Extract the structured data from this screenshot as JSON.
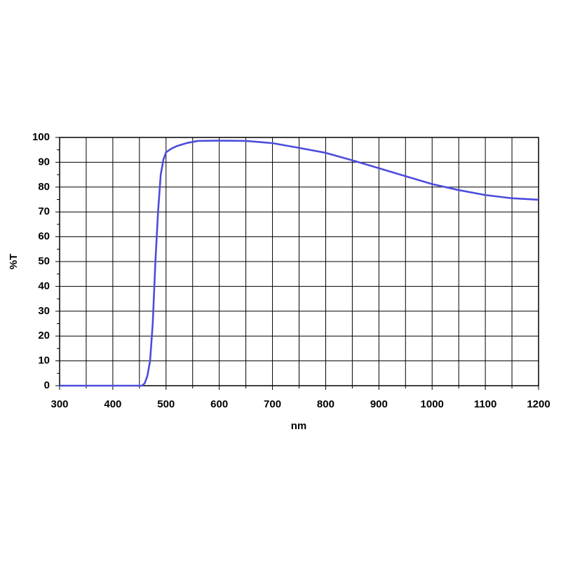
{
  "chart_data": {
    "type": "line",
    "x_label": "nm",
    "y_label": "%T",
    "x": [
      300,
      350,
      400,
      450,
      455,
      460,
      465,
      470,
      475,
      480,
      485,
      490,
      495,
      500,
      510,
      520,
      540,
      560,
      600,
      650,
      700,
      750,
      800,
      850,
      900,
      950,
      1000,
      1050,
      1100,
      1150,
      1200
    ],
    "series": [
      {
        "name": "%T",
        "color": "#4c4cdc",
        "values": [
          0,
          0,
          0,
          0,
          0,
          1,
          4,
          10,
          25,
          50,
          70,
          85,
          91,
          94,
          95.5,
          96.5,
          97.8,
          98.6,
          98.7,
          98.6,
          97.7,
          95.8,
          93.8,
          90.8,
          87.6,
          84.4,
          81.2,
          78.8,
          76.8,
          75.5,
          74.9
        ]
      }
    ],
    "xlim": [
      300,
      1200
    ],
    "xticks": [
      300,
      400,
      500,
      600,
      700,
      800,
      900,
      1000,
      1100,
      1200
    ],
    "ylim": [
      0,
      100
    ],
    "yticks": [
      0,
      10,
      20,
      30,
      40,
      50,
      60,
      70,
      80,
      90,
      100
    ],
    "grid": true
  }
}
